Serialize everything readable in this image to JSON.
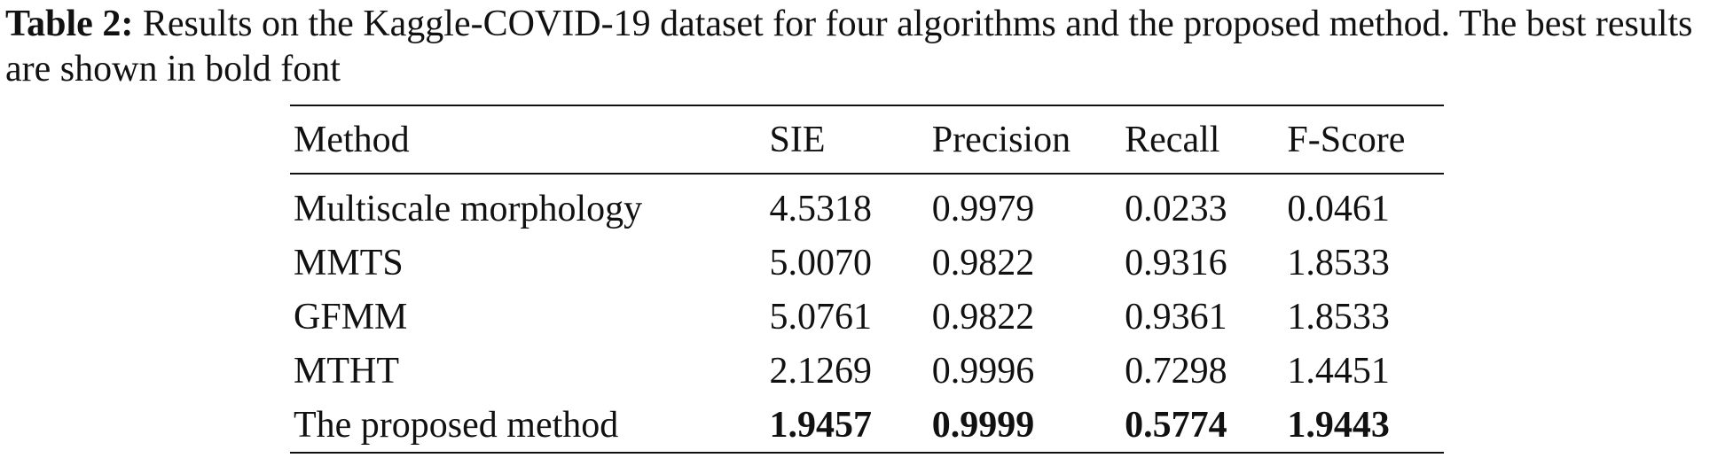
{
  "caption": {
    "label": "Table 2:",
    "text": "Results on the Kaggle-COVID-19 dataset for four algorithms and the proposed method. The best results are shown in bold font"
  },
  "table": {
    "headers": [
      "Method",
      "SIE",
      "Precision",
      "Recall",
      "F-Score"
    ],
    "rows": [
      {
        "method": "Multiscale morphology",
        "values": [
          "4.5318",
          "0.9979",
          "0.0233",
          "0.0461"
        ],
        "bold": [
          false,
          false,
          false,
          false
        ]
      },
      {
        "method": "MMTS",
        "values": [
          "5.0070",
          "0.9822",
          "0.9316",
          "1.8533"
        ],
        "bold": [
          false,
          false,
          false,
          false
        ]
      },
      {
        "method": "GFMM",
        "values": [
          "5.0761",
          "0.9822",
          "0.9361",
          "1.8533"
        ],
        "bold": [
          false,
          false,
          false,
          false
        ]
      },
      {
        "method": "MTHT",
        "values": [
          "2.1269",
          "0.9996",
          "0.7298",
          "1.4451"
        ],
        "bold": [
          false,
          false,
          false,
          false
        ]
      },
      {
        "method": "The proposed method",
        "values": [
          "1.9457",
          "0.9999",
          "0.5774",
          "1.9443"
        ],
        "bold": [
          true,
          true,
          true,
          true
        ]
      }
    ]
  }
}
